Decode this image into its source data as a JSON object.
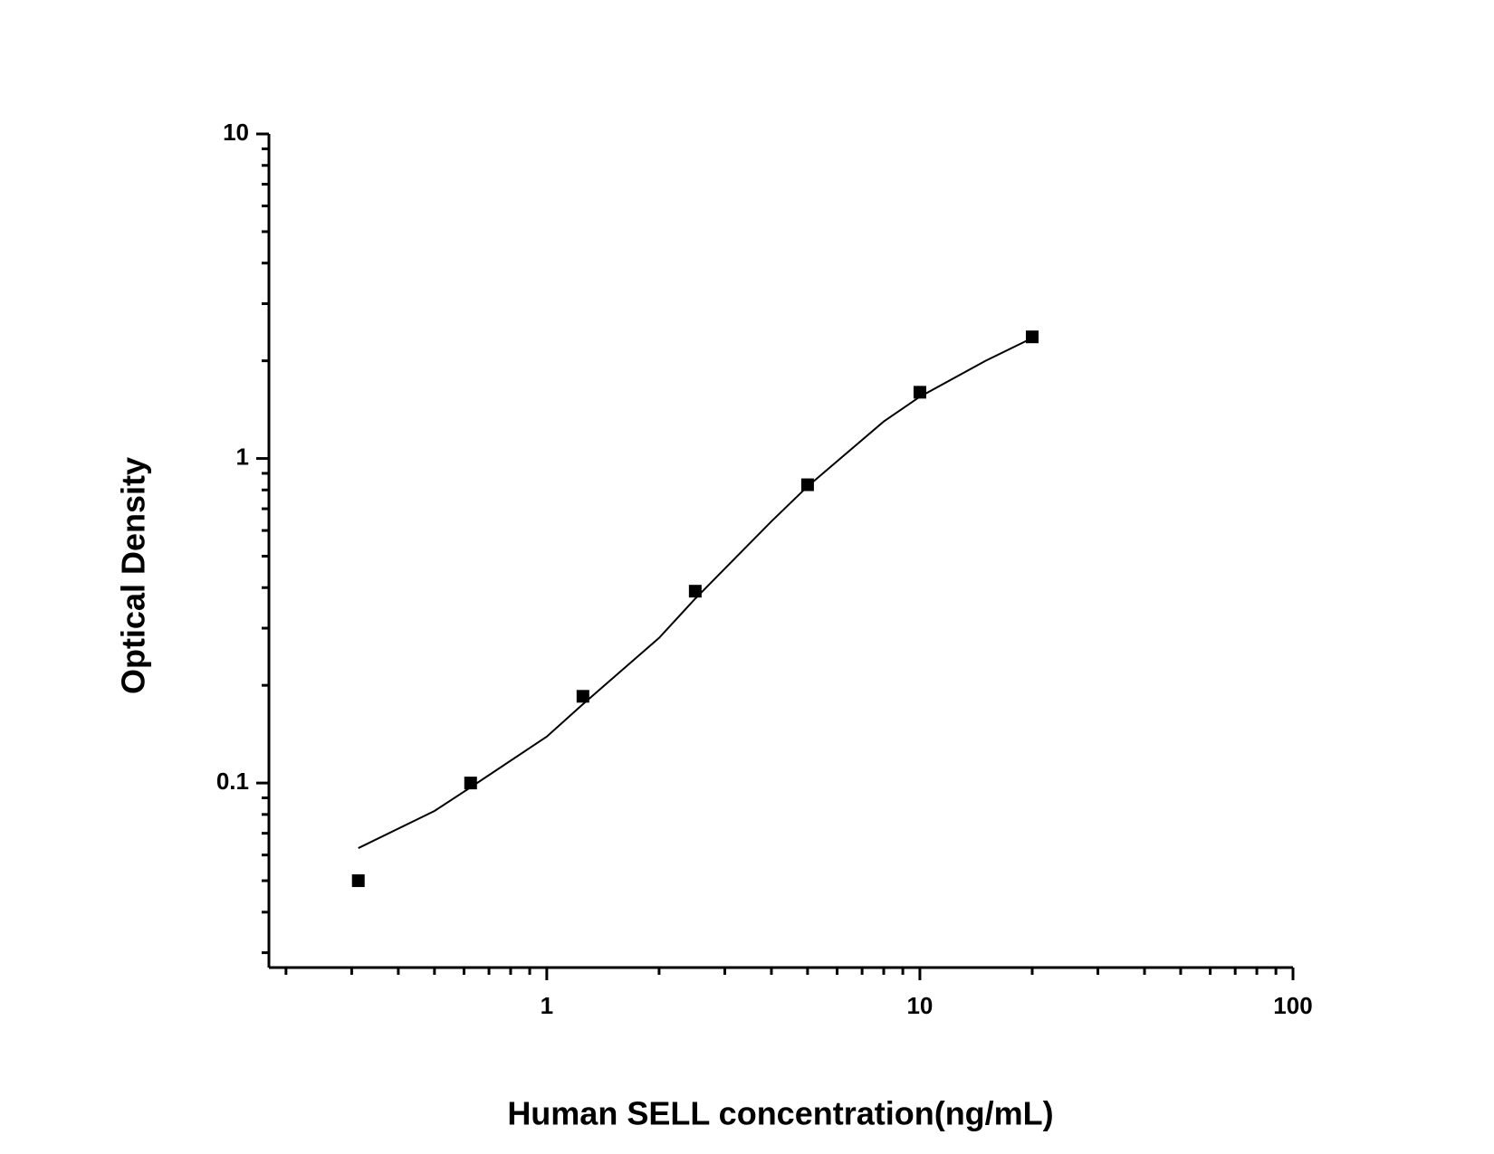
{
  "chart_data": {
    "type": "scatter",
    "x_label": "Human SELL concentration(ng/mL)",
    "y_label": "Optical Density",
    "xlog": true,
    "ylog": true,
    "xlim": [
      0.18,
      100
    ],
    "ylim": [
      0.027,
      10
    ],
    "xticks": [
      1,
      10,
      100
    ],
    "yticks": [
      0.1,
      1,
      10
    ],
    "xminorticks": [
      0.2,
      0.3,
      0.4,
      0.5,
      0.6,
      0.7,
      0.8,
      0.9,
      2,
      3,
      4,
      5,
      6,
      7,
      8,
      9,
      20,
      30,
      40,
      50,
      60,
      70,
      80,
      90
    ],
    "yminorticks": [
      0.03,
      0.04,
      0.05,
      0.06,
      0.07,
      0.08,
      0.09,
      0.2,
      0.3,
      0.4,
      0.5,
      0.6,
      0.7,
      0.8,
      0.9,
      2,
      3,
      4,
      5,
      6,
      7,
      8,
      9
    ],
    "x": [
      0.3125,
      0.625,
      1.25,
      2.5,
      5,
      10,
      20
    ],
    "series": [
      {
        "color": "#000000",
        "values": [
          0.05,
          0.1,
          0.185,
          0.39,
          0.83,
          1.6,
          2.37
        ]
      }
    ],
    "fit": {
      "color": "#000000",
      "x": [
        0.3125,
        0.5,
        0.625,
        1,
        1.25,
        2,
        2.5,
        4,
        5,
        8,
        10,
        15,
        20
      ],
      "values": [
        0.063,
        0.082,
        0.097,
        0.139,
        0.175,
        0.28,
        0.37,
        0.64,
        0.82,
        1.3,
        1.55,
        2.0,
        2.35
      ]
    }
  }
}
